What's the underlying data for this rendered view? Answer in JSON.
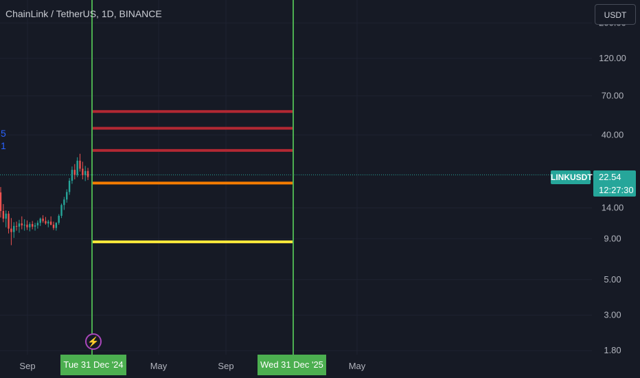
{
  "header": {
    "title": "ChainLink / TetherUS, 1D, BINANCE",
    "currency_button": "USDT"
  },
  "side_digits": [
    "5",
    "1"
  ],
  "price_label": {
    "symbol": "LINKUSDT",
    "price": "22.54",
    "countdown": "12:27:30"
  },
  "date_markers": [
    {
      "label": "Tue 31 Dec '24"
    },
    {
      "label": "Wed 31 Dec '25"
    }
  ],
  "colors": {
    "background": "#161a25",
    "vertical_lines": "#4caf50",
    "price_badge": "#26a69a",
    "line_red": "#b22833",
    "line_orange": "#f57c00",
    "line_yellow": "#ffeb3b",
    "alert_icon": "#ab47bc"
  },
  "icons": {
    "alert": "lightning-icon"
  },
  "chart_data": {
    "type": "line",
    "scale": "log",
    "y_ticks": [
      "200.00",
      "120.00",
      "70.00",
      "40.00",
      "14.00",
      "9.00",
      "5.00",
      "3.00",
      "1.80"
    ],
    "x_ticks": [
      "Sep",
      "May",
      "Sep",
      "May"
    ],
    "last_price": 22.54,
    "horizontal_levels": [
      {
        "price": 56,
        "color": "#b22833"
      },
      {
        "price": 44,
        "color": "#b22833"
      },
      {
        "price": 32,
        "color": "#b22833"
      },
      {
        "price": 20,
        "color": "#f57c00"
      },
      {
        "price": 8.6,
        "color": "#ffeb3b"
      }
    ],
    "vertical_markers": [
      "Tue 31 Dec '24",
      "Wed 31 Dec '25"
    ],
    "candles": [
      [
        17.5,
        18.9,
        12.2,
        13.4
      ],
      [
        13.4,
        14.8,
        11.4,
        12.0
      ],
      [
        12.0,
        13.5,
        10.6,
        12.9
      ],
      [
        12.9,
        13.4,
        9.7,
        10.4
      ],
      [
        10.4,
        12.1,
        8.2,
        9.9
      ],
      [
        9.9,
        11.4,
        9.1,
        10.8
      ],
      [
        10.8,
        11.5,
        10.1,
        10.7
      ],
      [
        10.7,
        11.8,
        9.8,
        11.2
      ],
      [
        11.2,
        12.4,
        10.3,
        10.9
      ],
      [
        10.9,
        11.9,
        10.1,
        11.0
      ],
      [
        11.0,
        11.7,
        10.2,
        10.6
      ],
      [
        10.6,
        11.4,
        10.0,
        11.1
      ],
      [
        11.1,
        11.6,
        10.3,
        10.7
      ],
      [
        10.7,
        11.3,
        10.1,
        10.9
      ],
      [
        10.9,
        11.7,
        10.4,
        11.3
      ],
      [
        11.3,
        12.2,
        10.8,
        12.0
      ],
      [
        12.0,
        12.6,
        11.3,
        11.6
      ],
      [
        11.6,
        12.3,
        11.0,
        11.2
      ],
      [
        11.2,
        11.8,
        10.6,
        11.5
      ],
      [
        11.5,
        12.4,
        10.9,
        11.0
      ],
      [
        11.0,
        11.5,
        10.2,
        10.5
      ],
      [
        10.5,
        11.4,
        10.1,
        11.3
      ],
      [
        11.3,
        12.8,
        11.0,
        12.5
      ],
      [
        12.5,
        14.9,
        12.1,
        14.6
      ],
      [
        14.6,
        16.4,
        13.6,
        15.8
      ],
      [
        15.8,
        18.3,
        15.1,
        17.6
      ],
      [
        17.6,
        21.5,
        16.9,
        20.7
      ],
      [
        20.7,
        25.4,
        19.8,
        24.2
      ],
      [
        24.2,
        26.3,
        21.1,
        22.5
      ],
      [
        22.5,
        29.0,
        21.8,
        27.6
      ],
      [
        27.6,
        30.5,
        23.6,
        24.6
      ],
      [
        24.6,
        27.2,
        21.1,
        22.4
      ],
      [
        22.4,
        25.6,
        20.6,
        23.8
      ],
      [
        23.8,
        24.9,
        20.9,
        21.8
      ]
    ]
  }
}
